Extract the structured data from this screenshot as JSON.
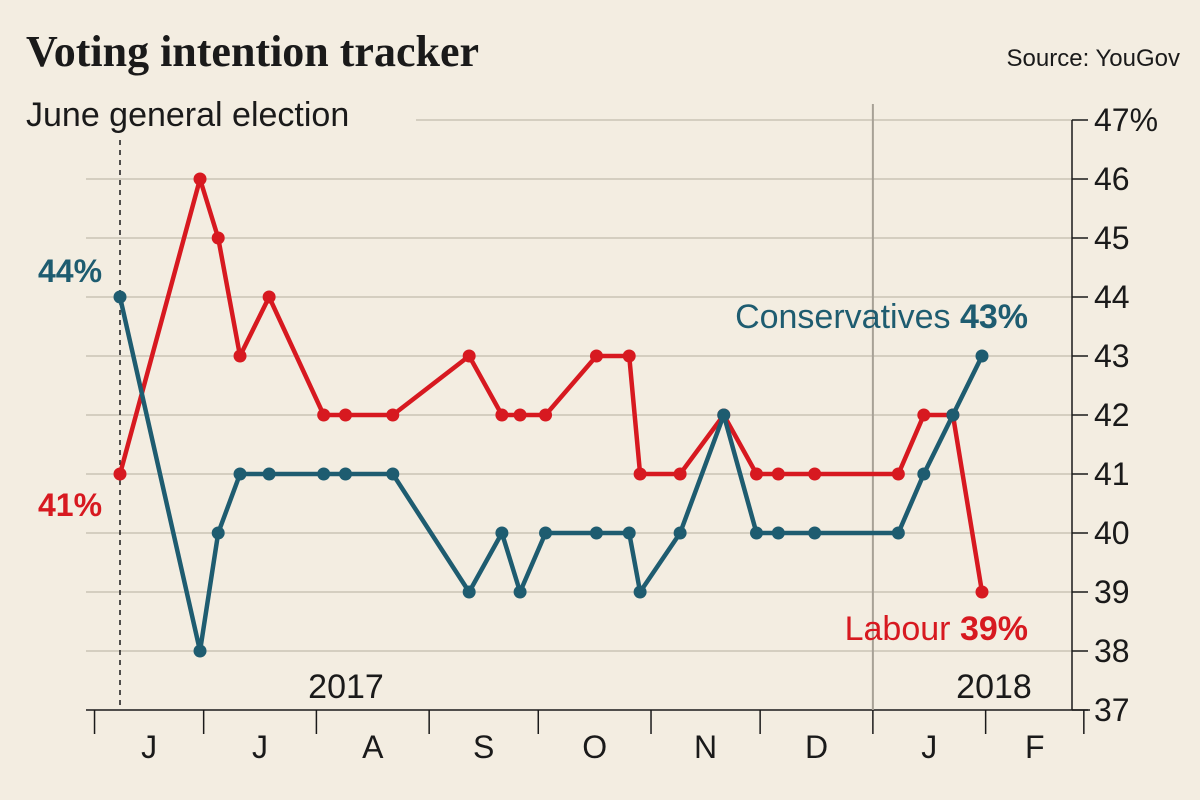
{
  "chart_data": {
    "type": "line",
    "title": "Voting intention tracker",
    "source": "Source: YouGov",
    "annotation": "June general election",
    "year_labels": [
      "2017",
      "2018"
    ],
    "month_labels": [
      "J",
      "J",
      "A",
      "S",
      "O",
      "N",
      "D",
      "J",
      "F"
    ],
    "y_ticks": [
      "47%",
      "46",
      "45",
      "44",
      "43",
      "42",
      "41",
      "40",
      "39",
      "38",
      "37"
    ],
    "ylim": [
      37,
      47
    ],
    "grid": true,
    "y_axis_position": "right",
    "series": [
      {
        "name": "Conservatives",
        "color": "#1e5c70",
        "start_label": "44%",
        "end_value_label": "43%",
        "x": [
          "2017-06-08",
          "2017-06-30",
          "2017-07-05",
          "2017-07-11",
          "2017-07-19",
          "2017-08-03",
          "2017-08-09",
          "2017-08-22",
          "2017-09-12",
          "2017-09-21",
          "2017-09-26",
          "2017-10-03",
          "2017-10-17",
          "2017-10-26",
          "2017-10-29",
          "2017-11-09",
          "2017-11-21",
          "2017-11-30",
          "2017-12-06",
          "2017-12-16",
          "2018-01-08",
          "2018-01-15",
          "2018-01-23",
          "2018-01-31"
        ],
        "values": [
          44,
          38,
          40,
          41,
          41,
          41,
          41,
          41,
          39,
          40,
          39,
          40,
          40,
          40,
          39,
          40,
          42,
          40,
          40,
          40,
          40,
          41,
          42,
          43
        ]
      },
      {
        "name": "Labour",
        "color": "#d71920",
        "start_label": "41%",
        "end_value_label": "39%",
        "x": [
          "2017-06-08",
          "2017-06-30",
          "2017-07-05",
          "2017-07-11",
          "2017-07-19",
          "2017-08-03",
          "2017-08-09",
          "2017-08-22",
          "2017-09-12",
          "2017-09-21",
          "2017-09-26",
          "2017-10-03",
          "2017-10-17",
          "2017-10-26",
          "2017-10-29",
          "2017-11-09",
          "2017-11-21",
          "2017-11-30",
          "2017-12-06",
          "2017-12-16",
          "2018-01-08",
          "2018-01-15",
          "2018-01-23",
          "2018-01-31"
        ],
        "values": [
          41,
          46,
          45,
          43,
          44,
          42,
          42,
          42,
          43,
          42,
          42,
          42,
          43,
          43,
          41,
          41,
          42,
          41,
          41,
          41,
          41,
          42,
          42,
          39
        ]
      }
    ]
  }
}
